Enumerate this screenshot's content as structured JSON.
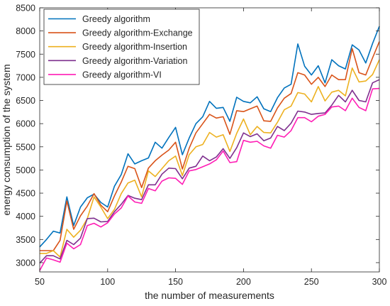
{
  "chart_data": {
    "type": "line",
    "xlabel": "the number of measurements",
    "ylabel": "energy consumption of the system",
    "xlim": [
      50,
      300
    ],
    "ylim": [
      2800,
      8500
    ],
    "xticks": [
      50,
      100,
      150,
      200,
      250,
      300
    ],
    "yticks": [
      3000,
      3500,
      4000,
      4500,
      5000,
      5500,
      6000,
      6500,
      7000,
      7500,
      8000,
      8500
    ],
    "grid": false,
    "legend_position": "top-left",
    "x": [
      50,
      55,
      60,
      65,
      70,
      75,
      80,
      85,
      90,
      95,
      100,
      105,
      110,
      115,
      120,
      125,
      130,
      135,
      140,
      145,
      150,
      155,
      160,
      165,
      170,
      175,
      180,
      185,
      190,
      195,
      200,
      205,
      210,
      215,
      220,
      225,
      230,
      235,
      240,
      245,
      250,
      255,
      260,
      265,
      270,
      275,
      280,
      285,
      290,
      295,
      300
    ],
    "series": [
      {
        "name": "Greedy algorithm",
        "color": "#0072BD",
        "values": [
          3340,
          3500,
          3680,
          3640,
          4420,
          3800,
          4200,
          4400,
          4480,
          4300,
          4200,
          4650,
          4900,
          5350,
          5130,
          5200,
          5260,
          5600,
          5470,
          5700,
          5920,
          5330,
          5690,
          6000,
          6150,
          6480,
          6330,
          6350,
          6050,
          6570,
          6480,
          6450,
          6580,
          6320,
          6260,
          6560,
          6770,
          6850,
          7720,
          7240,
          7050,
          7250,
          6880,
          7380,
          7250,
          7180,
          7700,
          7590,
          7310,
          7730,
          8100
        ]
      },
      {
        "name": "Greedy algorithm-Exchange",
        "color": "#D95319",
        "values": [
          3260,
          3260,
          3260,
          3480,
          4330,
          3720,
          4010,
          4220,
          4490,
          4240,
          4100,
          4440,
          4740,
          5080,
          5030,
          4620,
          5040,
          5200,
          5320,
          5430,
          5600,
          5020,
          5470,
          5800,
          6000,
          6200,
          6120,
          6150,
          5770,
          6280,
          6260,
          6320,
          6380,
          6060,
          6050,
          6340,
          6550,
          6650,
          7100,
          7050,
          6850,
          7000,
          6800,
          7050,
          6950,
          6950,
          7620,
          7100,
          7050,
          7420,
          7770
        ]
      },
      {
        "name": "Greedy algorithm-Insertion",
        "color": "#EDB120",
        "values": [
          3200,
          3200,
          3260,
          3120,
          3720,
          3550,
          3700,
          3950,
          4420,
          4200,
          3950,
          4150,
          4490,
          4720,
          4780,
          4420,
          4980,
          4860,
          5030,
          5200,
          5300,
          4880,
          5330,
          5500,
          5550,
          5810,
          5710,
          5760,
          5400,
          5790,
          6100,
          5760,
          5940,
          5810,
          5800,
          6030,
          6300,
          6380,
          6670,
          6640,
          6470,
          6800,
          6490,
          6680,
          6720,
          6600,
          7200,
          6900,
          6920,
          7060,
          7380
        ]
      },
      {
        "name": "Greedy algorithm-Variation",
        "color": "#7E2F8E",
        "values": [
          2990,
          3150,
          3150,
          3080,
          3480,
          3390,
          3530,
          3950,
          3960,
          3880,
          3890,
          4100,
          4260,
          4450,
          4390,
          4360,
          4680,
          4680,
          4910,
          5040,
          5030,
          4810,
          5040,
          5080,
          5300,
          5200,
          5280,
          5460,
          5250,
          5480,
          5800,
          5720,
          5780,
          5630,
          5690,
          5940,
          5850,
          6010,
          6270,
          6250,
          6200,
          6220,
          6230,
          6400,
          6610,
          6470,
          6720,
          6500,
          6470,
          6880,
          6950
        ]
      },
      {
        "name": "Greedy algorithm-VI",
        "color": "#FF1DB5",
        "values": [
          2830,
          3100,
          3060,
          3010,
          3420,
          3300,
          3390,
          3800,
          3850,
          3770,
          3860,
          4050,
          4180,
          4440,
          4310,
          4280,
          4600,
          4550,
          4760,
          4830,
          4820,
          4690,
          4980,
          5010,
          5070,
          5130,
          5220,
          5410,
          5160,
          5180,
          5640,
          5600,
          5620,
          5520,
          5470,
          5750,
          5710,
          5850,
          6130,
          6130,
          6040,
          6160,
          6200,
          6360,
          6380,
          6280,
          6550,
          6350,
          6280,
          6750,
          6760
        ]
      }
    ]
  }
}
